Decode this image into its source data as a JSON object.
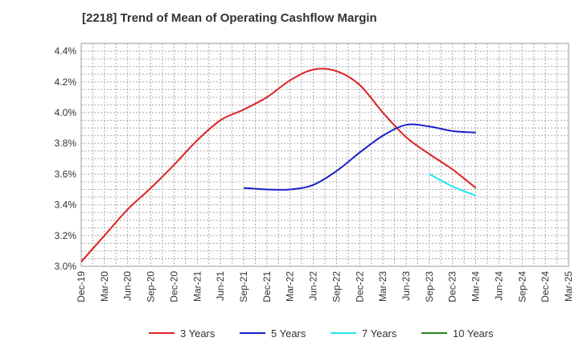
{
  "chart_data": {
    "type": "line",
    "title": "[2218]  Trend of Mean of Operating Cashflow Margin",
    "xlabel": "",
    "ylabel": "",
    "categories": [
      "Dec-19",
      "Mar-20",
      "Jun-20",
      "Sep-20",
      "Dec-20",
      "Mar-21",
      "Jun-21",
      "Sep-21",
      "Dec-21",
      "Mar-22",
      "Jun-22",
      "Sep-22",
      "Dec-22",
      "Mar-23",
      "Jun-23",
      "Sep-23",
      "Dec-23",
      "Mar-24",
      "Jun-24",
      "Sep-24",
      "Dec-24",
      "Mar-25"
    ],
    "ylim": [
      3.0,
      4.45
    ],
    "yticks": [
      3.0,
      3.2,
      3.4,
      3.6,
      3.8,
      4.0,
      4.2,
      4.4
    ],
    "ytick_labels": [
      "3.0%",
      "3.2%",
      "3.4%",
      "3.6%",
      "3.8%",
      "4.0%",
      "4.2%",
      "4.4%"
    ],
    "grid": true,
    "legend_position": "bottom",
    "series": [
      {
        "name": "3 Years",
        "color": "#dd2222",
        "values": [
          3.03,
          3.2,
          3.37,
          3.51,
          3.66,
          3.82,
          3.95,
          4.02,
          4.1,
          4.21,
          4.28,
          4.27,
          4.18,
          4.0,
          3.84,
          3.73,
          3.63,
          3.51,
          null,
          null,
          null,
          null
        ]
      },
      {
        "name": "5 Years",
        "color": "#1a22c8",
        "values": [
          null,
          null,
          null,
          null,
          null,
          null,
          null,
          3.51,
          3.5,
          3.5,
          3.53,
          3.62,
          3.74,
          3.85,
          3.92,
          3.91,
          3.88,
          3.87,
          null,
          null,
          null,
          null
        ]
      },
      {
        "name": "7 Years",
        "color": "#22e5ee",
        "values": [
          null,
          null,
          null,
          null,
          null,
          null,
          null,
          null,
          null,
          null,
          null,
          null,
          null,
          null,
          null,
          3.6,
          3.52,
          3.46,
          null,
          null,
          null,
          null
        ]
      },
      {
        "name": "10 Years",
        "color": "#228822",
        "values": [
          null,
          null,
          null,
          null,
          null,
          null,
          null,
          null,
          null,
          null,
          null,
          null,
          null,
          null,
          null,
          null,
          null,
          null,
          null,
          null,
          null,
          null
        ]
      }
    ]
  }
}
